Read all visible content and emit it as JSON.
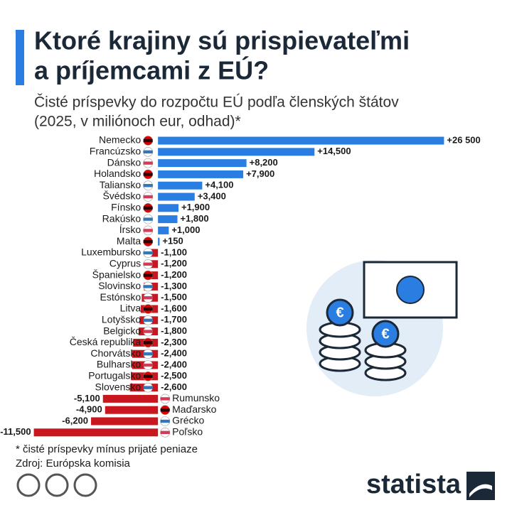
{
  "chart_data": {
    "type": "bar",
    "orientation": "horizontal",
    "title": [
      "Ktoré krajiny sú prispievateľmi",
      "a príjemcami z EÚ?"
    ],
    "subtitle": [
      "Čisté príspevky do rozpočtu EÚ podľa členských štátov",
      "(2025, v miliónoch eur, odhad)*"
    ],
    "categories": [
      "Nemecko",
      "Francúzsko",
      "Dánsko",
      "Holandsko",
      "Taliansko",
      "Švédsko",
      "Fínsko",
      "Rakúsko",
      "Írsko",
      "Malta",
      "Luxembursko",
      "Cyprus",
      "Španielsko",
      "Slovinsko",
      "Estónsko",
      "Litva",
      "Lotyšsko",
      "Belgicko",
      "Česká republika",
      "Chorvátsko",
      "Bulharsko",
      "Portugalsko",
      "Slovensko",
      "Rumunsko",
      "Maďarsko",
      "Grécko",
      "Poľsko"
    ],
    "values": [
      26500,
      14500,
      8200,
      7900,
      4100,
      3400,
      1900,
      1800,
      1000,
      150,
      -1100,
      -1200,
      -1200,
      -1300,
      -1500,
      -1600,
      -1700,
      -1800,
      -2300,
      -2400,
      -2400,
      -2500,
      -2600,
      -5100,
      -4900,
      -6200,
      -11500
    ],
    "value_labels": [
      "+26 500",
      "+14,500",
      "+8,200",
      "+7,900",
      "+4,100",
      "+3,400",
      "+1,900",
      "+1,800",
      "+1,000",
      "+150",
      "-1,100",
      "-1,200",
      "-1,200",
      "-1,300",
      "-1,500",
      "-1,600",
      "-1,700",
      "-1,800",
      "-2,300",
      "-2,400",
      "-2,400",
      "-2,500",
      "-2,600",
      "-5,100",
      "-4,900",
      "-6,200",
      "-11,500"
    ],
    "positive_color": "#2a7de1",
    "negative_color": "#c8171e",
    "xlim": [
      -12000,
      27000
    ],
    "footnote": "* čisté príspevky mínus prijaté peniaze",
    "source": "Zdroj: Európska komisia",
    "brand": "statista"
  }
}
